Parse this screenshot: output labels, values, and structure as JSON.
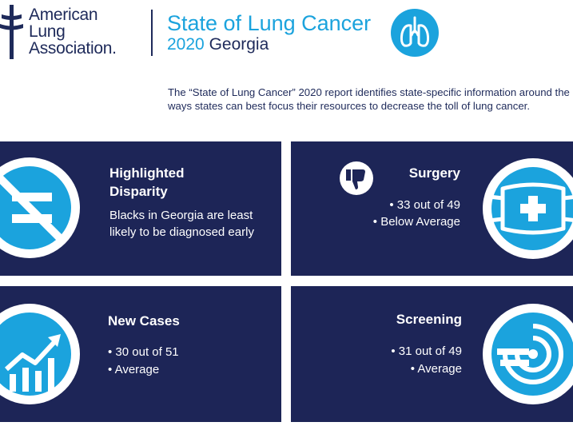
{
  "logo": {
    "line1": "American",
    "line2": "Lung",
    "line3": "Association."
  },
  "header": {
    "title": "State of Lung Cancer",
    "year": "2020",
    "state": "Georgia"
  },
  "intro": "The “State of Lung Cancer” 2020 report identifies state-specific information around the ways states can best focus their resources to decrease the toll of lung cancer.",
  "colors": {
    "navy": "#1d2557",
    "blue": "#1ba3dd",
    "text_navy": "#1e2a5a"
  },
  "cards": {
    "disparity": {
      "title_line1": "Highlighted",
      "title_line2": "Disparity",
      "text_line1": "Blacks in Georgia are least",
      "text_line2": "likely to be diagnosed early",
      "icon": "not-equal-icon"
    },
    "surgery": {
      "title": "Surgery",
      "bullet1": "• 33 out of 49",
      "bullet2": "• Below Average",
      "icon": "surgical-mask-icon",
      "badge_icon": "thumbs-down-icon"
    },
    "newcases": {
      "title": "New Cases",
      "bullet1": "• 30 out of 51",
      "bullet2": "• Average",
      "icon": "rising-chart-icon"
    },
    "screening": {
      "title": "Screening",
      "bullet1": "• 31 out of 49",
      "bullet2": "• Average",
      "icon": "scanner-icon"
    }
  }
}
